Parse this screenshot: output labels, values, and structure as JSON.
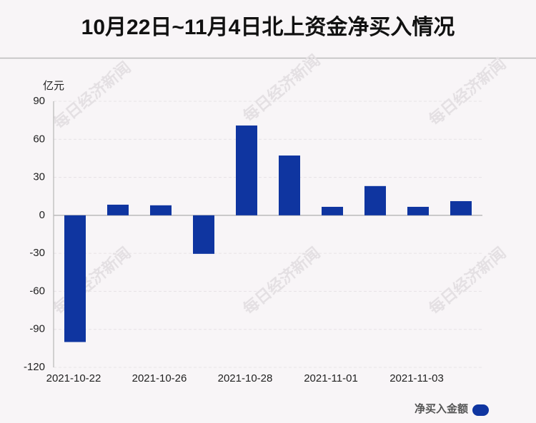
{
  "chart_data": {
    "type": "bar",
    "title": "10月22日~11月4日北上资金净买入情况",
    "y_unit": "亿元",
    "watermark": "每日经济新闻",
    "categories": [
      "2021-10-22",
      null,
      "2021-10-26",
      null,
      "2021-10-28",
      null,
      "2021-11-01",
      null,
      "2021-11-03",
      null
    ],
    "series": [
      {
        "name": "净买入金额",
        "color": "#0f35a0",
        "values": [
          -100,
          8.4,
          7.9,
          -30.4,
          70.9,
          47.2,
          6.7,
          23.1,
          6.7,
          11.2
        ]
      }
    ],
    "ylim": [
      -120,
      90
    ],
    "yticks": [
      -120,
      -90,
      -60,
      -30,
      0,
      30,
      60,
      90
    ],
    "grid": true,
    "legend": "bottom-right"
  }
}
